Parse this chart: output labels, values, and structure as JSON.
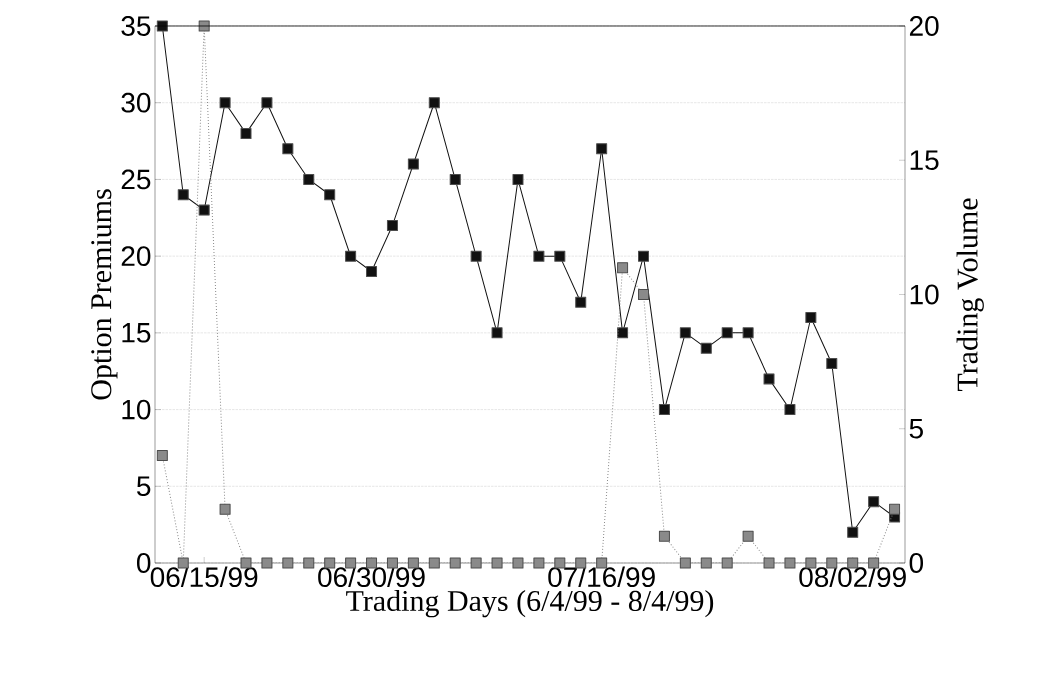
{
  "chart_data": {
    "type": "line",
    "xlabel": "Trading Days (6/4/99 - 8/4/99)",
    "ylabel": "Option Premiums",
    "y2label": "Trading Volume",
    "categories": [
      null,
      null,
      "06/15/99",
      null,
      null,
      null,
      null,
      null,
      null,
      null,
      "06/30/99",
      null,
      null,
      null,
      null,
      null,
      null,
      null,
      null,
      null,
      null,
      "07/16/99",
      null,
      null,
      null,
      null,
      null,
      null,
      null,
      null,
      null,
      null,
      null,
      "08/02/99",
      null,
      null
    ],
    "series": [
      {
        "color": "#111111",
        "marker": "square",
        "line_style": "solid",
        "values": [
          35,
          24,
          23,
          30,
          28,
          30,
          27,
          25,
          24,
          20,
          19,
          22,
          26,
          30,
          25,
          20,
          15,
          25,
          20,
          20,
          17,
          27,
          15,
          20,
          10,
          15,
          14,
          15,
          15,
          12,
          10,
          16,
          13,
          2,
          4,
          3
        ]
      },
      {
        "color": "#8a8a8a",
        "marker": "square",
        "line_style": "dotted",
        "axis": "y2",
        "values": [
          4,
          0,
          20,
          2,
          0,
          0,
          0,
          0,
          0,
          0,
          0,
          0,
          0,
          0,
          0,
          0,
          0,
          0,
          0,
          0,
          0,
          0,
          11,
          10,
          1,
          0,
          0,
          0,
          1,
          0,
          0,
          0,
          0,
          0,
          0,
          2
        ]
      }
    ],
    "ylim": [
      0,
      35
    ],
    "yticks": [
      0,
      5,
      10,
      15,
      20,
      25,
      30,
      35
    ],
    "y2lim": [
      0,
      20
    ],
    "y2ticks": [
      0,
      5,
      10,
      15,
      20
    ],
    "grid": "y"
  }
}
